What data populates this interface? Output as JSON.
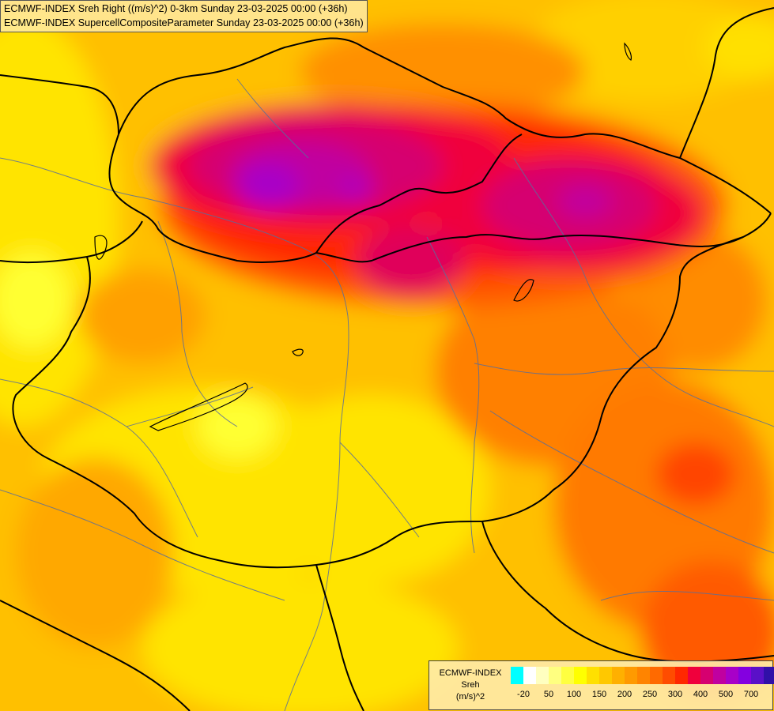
{
  "header": {
    "line1": "ECMWF-INDEX Sreh Right ((m/s)^2) 0-3km Sunday 23-03-2025 00:00 (+36h)",
    "line2": "ECMWF-INDEX SupercellCompositeParameter Sunday 23-03-2025 00:00 (+36h)"
  },
  "legend": {
    "model": "ECMWF-INDEX",
    "variable": "Sreh",
    "unit": "(m/s)^2",
    "tick_labels": [
      "-20",
      "50",
      "100",
      "150",
      "200",
      "250",
      "300",
      "400",
      "500",
      "700"
    ],
    "colors": [
      "#00ffff",
      "#ffffff",
      "#ffffc0",
      "#ffff80",
      "#ffff40",
      "#ffff00",
      "#ffe000",
      "#ffc800",
      "#ffb000",
      "#ff9a00",
      "#ff8400",
      "#ff6a00",
      "#ff4c00",
      "#ff2800",
      "#f0003c",
      "#d60070",
      "#c000a0",
      "#a800c8",
      "#8400e0",
      "#5a10c8",
      "#3010a8",
      "#000088"
    ]
  },
  "colors": {
    "border": "#000000",
    "rivers": "#5a6e9a"
  }
}
